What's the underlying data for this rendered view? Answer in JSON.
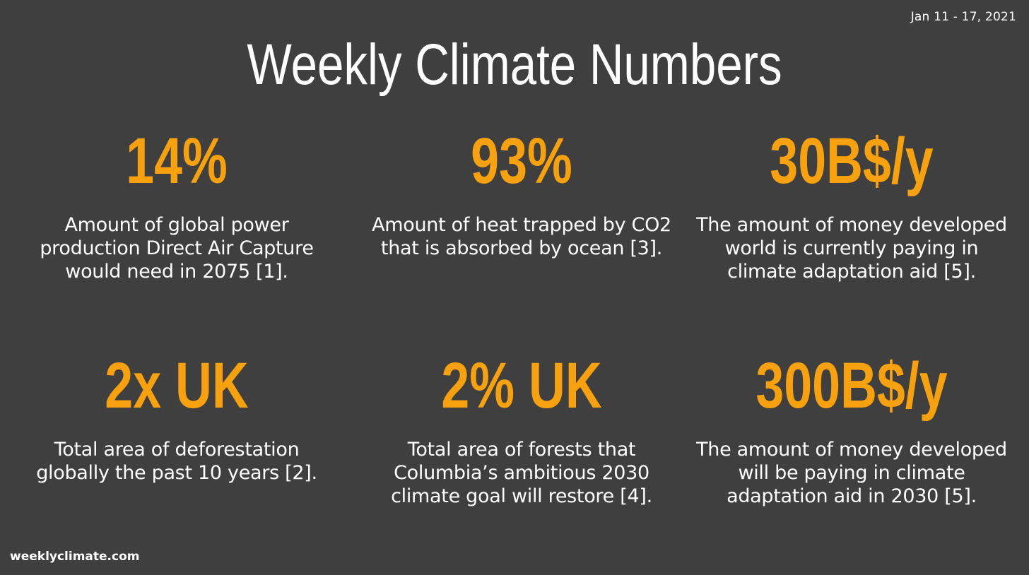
{
  "date": "Jan 11 - 17, 2021",
  "title": "Weekly Climate Numbers",
  "stats": [
    {
      "value": "14%",
      "description": "Amount of global power production Direct Air Capture would need in 2075 [1]."
    },
    {
      "value": "93%",
      "description": "Amount of heat trapped by CO2 that is absorbed by ocean [3]."
    },
    {
      "value": "30B$/y",
      "description": "The amount of money developed world is currently paying in climate adaptation aid [5]."
    },
    {
      "value": "2x UK",
      "description": "Total area of deforestation globally the past 10 years [2]."
    },
    {
      "value": "2% UK",
      "description": "Total area of forests that Columbia’s ambitious 2030 climate goal will restore [4]."
    },
    {
      "value": "300B$/y",
      "description": "The amount of money developed will be paying in climate adaptation aid in 2030 [5]."
    }
  ],
  "footer": "weeklyclimate.com",
  "colors": {
    "background": "#3f3f3f",
    "accent": "#f7a10e",
    "text": "#ffffff"
  }
}
